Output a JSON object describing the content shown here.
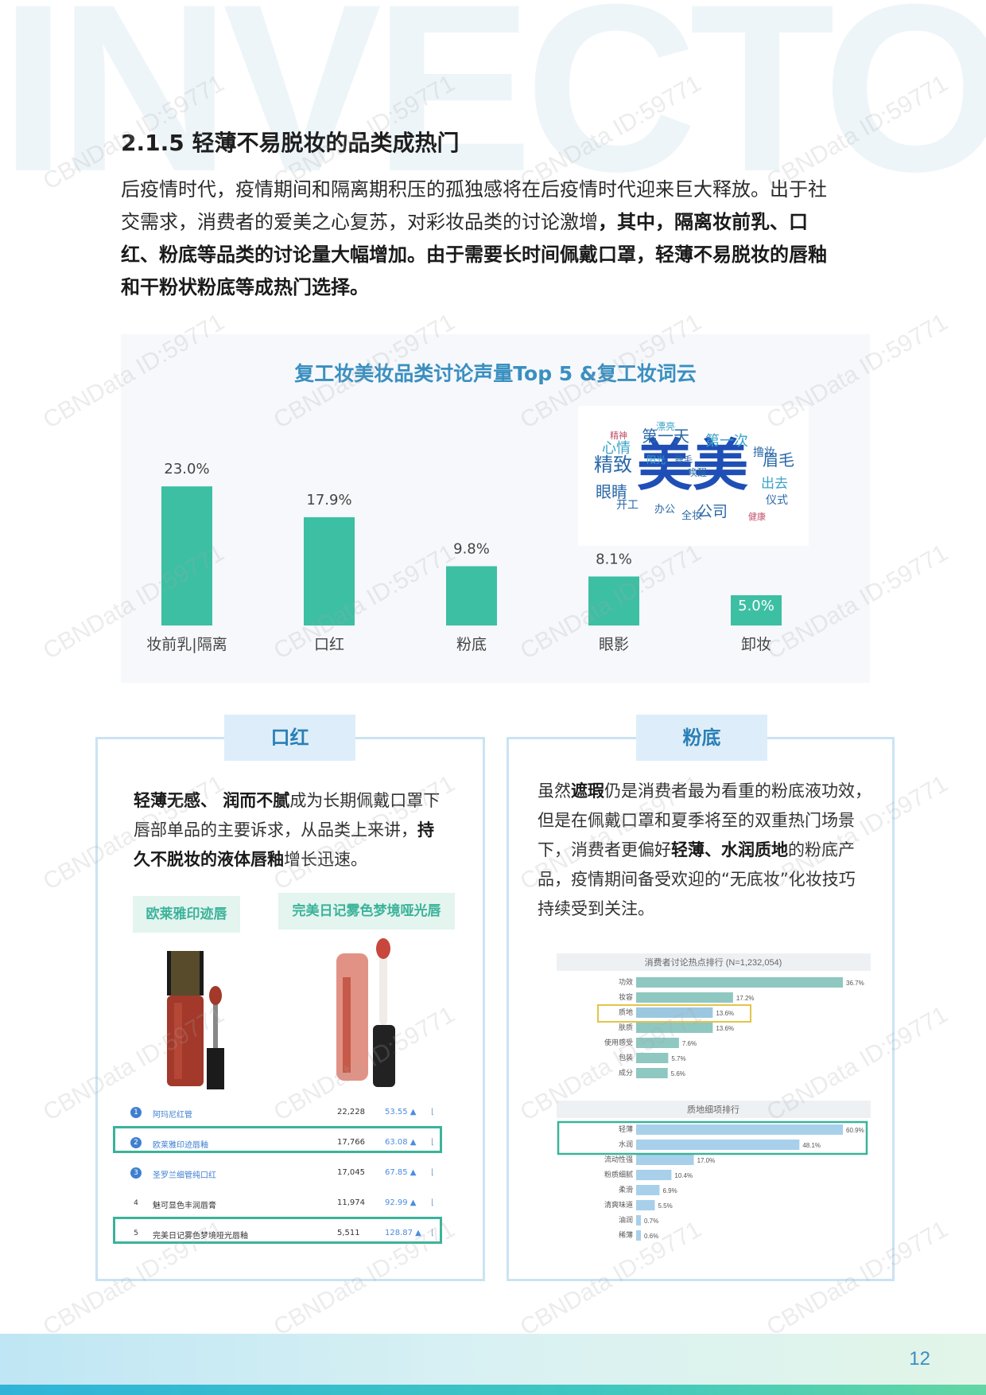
{
  "background_word": "INVECTOR",
  "watermark": "CBNData ID:59771",
  "section": {
    "title": "2.1.5 轻薄不易脱妆的品类成热门",
    "intro_lines": [
      {
        "plain": "后疫情时代，疫情期间和隔离期积压的孤独感将在后疫情时代迎来巨大释放。出于社",
        "bold": ""
      },
      {
        "plain": "交需求，消费者的爱美之心复苏，对彩妆品类的讨论激增",
        "bold": "，其中，隔离妆前乳、口"
      },
      {
        "plain": "",
        "bold": "红、粉底等品类的讨论量大幅增加。由于需要长时间佩戴口罩，轻薄不易脱妆的唇釉"
      },
      {
        "plain": "",
        "bold": "和干粉状粉底等成热门选择。"
      }
    ]
  },
  "chart_data": {
    "type": "bar",
    "title": "复工妆美妆品类讨论声量Top 5 &复工妆词云",
    "categories": [
      "妆前乳|隔离",
      "口红",
      "粉底",
      "眼影",
      "卸妆"
    ],
    "values": [
      23.0,
      17.9,
      9.8,
      8.1,
      5.0
    ],
    "value_labels": [
      "23.0%",
      "17.9%",
      "9.8%",
      "8.1%",
      "5.0%"
    ],
    "unit": "%",
    "ylim": [
      0,
      25
    ],
    "color": "#3dbfa3",
    "grid": false
  },
  "wordcloud": {
    "words": [
      "美美",
      "精致",
      "眉毛",
      "第一天",
      "第一次",
      "心情",
      "眼睛",
      "出去",
      "公司",
      "仪式",
      "开工",
      "全妆",
      "办公",
      "撸妆",
      "阳光",
      "漂亮",
      "睫毛",
      "健康",
      "精神",
      "唤醒"
    ]
  },
  "lipstick_box": {
    "tab": "口红",
    "text_lines": [
      [
        {
          "b": "轻薄无感、 润而不腻"
        },
        {
          "t": "成为长期佩戴口罩下"
        }
      ],
      [
        {
          "t": "唇部单品的主要诉求，从品类上来讲，"
        },
        {
          "b": "持"
        }
      ],
      [
        {
          "b": "久不脱妆的液体唇釉"
        },
        {
          "t": "增长迅速。"
        }
      ]
    ],
    "product_labels": [
      "欧莱雅印迹唇",
      "完美日记雾色梦境哑光唇"
    ],
    "rank_rows": [
      {
        "rank": "1",
        "name": "阿玛尼红管",
        "count": "22,228",
        "score": "53.55 ▲"
      },
      {
        "rank": "2",
        "name": "欧莱雅印迹唇釉",
        "count": "17,766",
        "score": "63.08 ▲"
      },
      {
        "rank": "3",
        "name": "圣罗兰细管纯口红",
        "count": "17,045",
        "score": "67.85 ▲"
      },
      {
        "rank": "4",
        "name": "魅可显色丰润唇膏",
        "count": "11,974",
        "score": "92.99 ▲"
      },
      {
        "rank": "5",
        "name": "完美日记雾色梦境哑光唇釉",
        "count": "5,511",
        "score": "128.87 ▲"
      }
    ]
  },
  "foundation_box": {
    "tab": "粉底",
    "text_lines": [
      [
        {
          "t": "虽然"
        },
        {
          "b": "遮瑕"
        },
        {
          "t": "仍是消费者最为看重的粉底液功效，"
        }
      ],
      [
        {
          "t": "但是在佩戴口罩和夏季将至的双重热门场景"
        }
      ],
      [
        {
          "t": "下，消费者更偏好"
        },
        {
          "b": "轻薄、水润质地"
        },
        {
          "t": "的粉底产"
        }
      ],
      [
        {
          "t": "品，疫情期间备受欢迎的“无底妆”化妆技巧"
        }
      ],
      [
        {
          "t": "持续受到关注。"
        }
      ]
    ],
    "chart1": {
      "title": "消费者讨论热点排行 (N=1,232,054)",
      "rows": [
        {
          "label": "功效",
          "value": 36.7,
          "text": "36.7%"
        },
        {
          "label": "妆容",
          "value": 17.2,
          "text": "17.2%"
        },
        {
          "label": "质地",
          "value": 13.6,
          "text": "13.6%"
        },
        {
          "label": "肤质",
          "value": 13.6,
          "text": "13.6%"
        },
        {
          "label": "使用感受",
          "value": 7.6,
          "text": "7.6%"
        },
        {
          "label": "包装",
          "value": 5.7,
          "text": "5.7%"
        },
        {
          "label": "成分",
          "value": 5.6,
          "text": "5.6%"
        }
      ]
    },
    "chart2": {
      "title": "质地细项排行",
      "rows": [
        {
          "label": "轻薄",
          "value": 60.9,
          "text": "60.9%"
        },
        {
          "label": "水润",
          "value": 48.1,
          "text": "48.1%"
        },
        {
          "label": "流动性强",
          "value": 17.0,
          "text": "17.0%"
        },
        {
          "label": "粉质细腻",
          "value": 10.4,
          "text": "10.4%"
        },
        {
          "label": "柔滑",
          "value": 6.9,
          "text": "6.9%"
        },
        {
          "label": "清爽味道",
          "value": 5.5,
          "text": "5.5%"
        },
        {
          "label": "油润",
          "value": 0.7,
          "text": "0.7%"
        },
        {
          "label": "稀薄",
          "value": 0.6,
          "text": "0.6%"
        }
      ]
    }
  },
  "footer": {
    "page_number": "12"
  }
}
